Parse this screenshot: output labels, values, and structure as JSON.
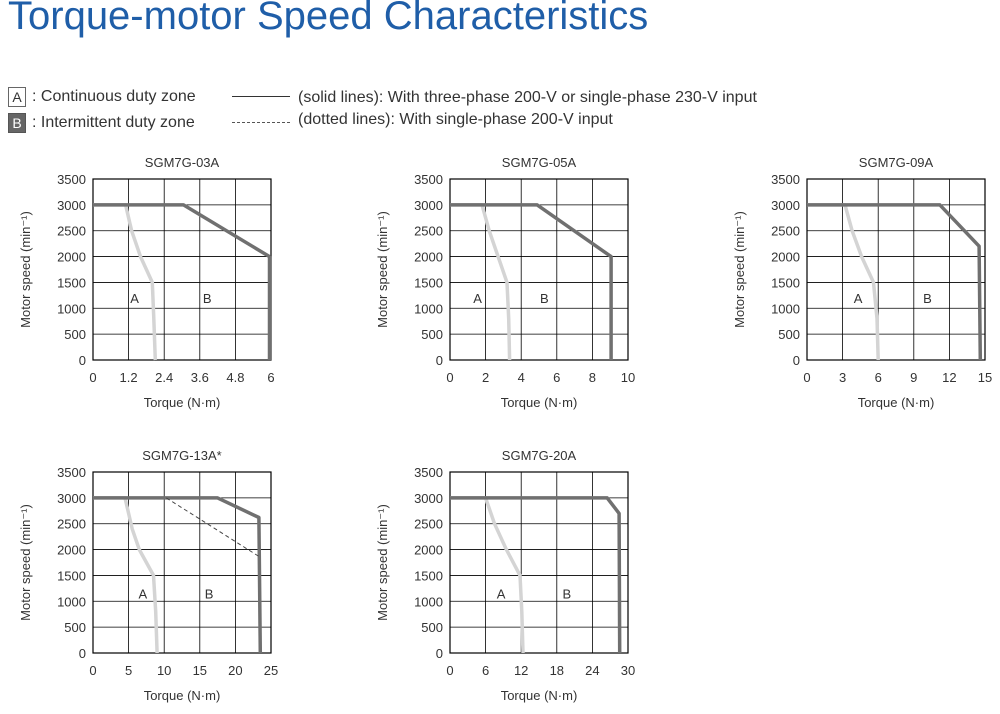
{
  "title": "Torque-motor Speed Characteristics",
  "legend": {
    "zone_a_letter": "A",
    "zone_a_text": ": Continuous duty zone",
    "zone_b_letter": "B",
    "zone_b_text": ": Intermittent duty zone",
    "solid_text": "(solid lines): With three-phase 200-V or single-phase 230-V input",
    "dotted_text": "(dotted lines): With single-phase 200-V input"
  },
  "colors": {
    "title": "#1f5ea8",
    "continuous_curve": "#d4d4d4",
    "intermittent_curve": "#707070",
    "dotted_curve": "#444444",
    "grid": "#000000"
  },
  "chart_data": [
    {
      "type": "line",
      "title": "SGM7G-03A",
      "xlabel": "Torque (N·m)",
      "ylabel": "Motor speed (min⁻¹)",
      "xlim": [
        0,
        6
      ],
      "ylim": [
        0,
        3500
      ],
      "xticks": [
        0,
        1.2,
        2.4,
        3.6,
        4.8,
        6
      ],
      "xtick_labels": [
        "0",
        "1.2",
        "2.4",
        "3.6",
        "4.8",
        "6"
      ],
      "yticks": [
        0,
        500,
        1000,
        1500,
        2000,
        2500,
        3000,
        3500
      ],
      "grid": true,
      "zone_labels": [
        {
          "text": "A",
          "x": 1.4,
          "y": 1200
        },
        {
          "text": "B",
          "x": 3.85,
          "y": 1200
        }
      ],
      "series": [
        {
          "role": "continuous",
          "x": [
            0,
            1.1,
            1.3,
            1.6,
            2.0,
            2.05,
            2.1
          ],
          "y": [
            3000,
            3000,
            2500,
            2000,
            1500,
            800,
            0
          ]
        },
        {
          "role": "intermittent-solid",
          "x": [
            0,
            3.05,
            5.95,
            5.95
          ],
          "y": [
            3000,
            3000,
            2000,
            0
          ]
        }
      ]
    },
    {
      "type": "line",
      "title": "SGM7G-05A",
      "xlabel": "Torque (N·m)",
      "ylabel": "Motor speed (min⁻¹)",
      "xlim": [
        0,
        10
      ],
      "ylim": [
        0,
        3500
      ],
      "xticks": [
        0,
        2,
        4,
        6,
        8,
        10
      ],
      "xtick_labels": [
        "0",
        "2",
        "4",
        "6",
        "8",
        "10"
      ],
      "yticks": [
        0,
        500,
        1000,
        1500,
        2000,
        2500,
        3000,
        3500
      ],
      "grid": true,
      "zone_labels": [
        {
          "text": "A",
          "x": 1.55,
          "y": 1200
        },
        {
          "text": "B",
          "x": 5.3,
          "y": 1200
        }
      ],
      "series": [
        {
          "role": "continuous",
          "x": [
            0,
            1.8,
            2.2,
            2.7,
            3.2,
            3.3,
            3.35
          ],
          "y": [
            3000,
            3000,
            2500,
            2000,
            1500,
            800,
            0
          ]
        },
        {
          "role": "intermittent-solid",
          "x": [
            0,
            4.9,
            9.05,
            9.05
          ],
          "y": [
            3000,
            3000,
            2000,
            0
          ]
        }
      ]
    },
    {
      "type": "line",
      "title": "SGM7G-09A",
      "xlabel": "Torque (N·m)",
      "ylabel": "Motor speed (min⁻¹)",
      "xlim": [
        0,
        15
      ],
      "ylim": [
        0,
        3500
      ],
      "xticks": [
        0,
        3,
        6,
        9,
        12,
        15
      ],
      "xtick_labels": [
        "0",
        "3",
        "6",
        "9",
        "12",
        "15"
      ],
      "yticks": [
        0,
        500,
        1000,
        1500,
        2000,
        2500,
        3000,
        3500
      ],
      "grid": true,
      "zone_labels": [
        {
          "text": "A",
          "x": 4.3,
          "y": 1200
        },
        {
          "text": "B",
          "x": 10.15,
          "y": 1200
        }
      ],
      "series": [
        {
          "role": "continuous",
          "x": [
            0,
            3.2,
            3.8,
            4.6,
            5.6,
            5.9,
            6.0
          ],
          "y": [
            3000,
            3000,
            2500,
            2000,
            1500,
            800,
            0
          ]
        },
        {
          "role": "intermittent-solid",
          "x": [
            0,
            11.2,
            14.5,
            14.6
          ],
          "y": [
            3000,
            3000,
            2200,
            0
          ]
        }
      ]
    },
    {
      "type": "line",
      "title": "SGM7G-13A*",
      "xlabel": "Torque (N·m)",
      "ylabel": "Motor speed (min⁻¹)",
      "xlim": [
        0,
        25
      ],
      "ylim": [
        0,
        3500
      ],
      "xticks": [
        0,
        5,
        10,
        15,
        20,
        25
      ],
      "xtick_labels": [
        "0",
        "5",
        "10",
        "15",
        "20",
        "25"
      ],
      "yticks": [
        0,
        500,
        1000,
        1500,
        2000,
        2500,
        3000,
        3500
      ],
      "grid": true,
      "zone_labels": [
        {
          "text": "A",
          "x": 7.0,
          "y": 1150
        },
        {
          "text": "B",
          "x": 16.3,
          "y": 1150
        }
      ],
      "series": [
        {
          "role": "continuous",
          "x": [
            0,
            4.5,
            5.5,
            6.5,
            8.5,
            8.8,
            9.0
          ],
          "y": [
            3000,
            3000,
            2400,
            2000,
            1500,
            800,
            0
          ]
        },
        {
          "role": "intermittent-solid",
          "x": [
            0,
            17.5,
            23.3,
            23.5
          ],
          "y": [
            3000,
            3000,
            2620,
            0
          ]
        },
        {
          "role": "intermittent-dotted",
          "x": [
            10.3,
            23.5
          ],
          "y": [
            3000,
            1850
          ]
        }
      ]
    },
    {
      "type": "line",
      "title": "SGM7G-20A",
      "xlabel": "Torque (N·m)",
      "ylabel": "Motor speed (min⁻¹)",
      "xlim": [
        0,
        30
      ],
      "ylim": [
        0,
        3500
      ],
      "xticks": [
        0,
        6,
        12,
        18,
        24,
        30
      ],
      "xtick_labels": [
        "0",
        "6",
        "12",
        "18",
        "24",
        "30"
      ],
      "yticks": [
        0,
        500,
        1000,
        1500,
        2000,
        2500,
        3000,
        3500
      ],
      "grid": true,
      "zone_labels": [
        {
          "text": "A",
          "x": 8.6,
          "y": 1150
        },
        {
          "text": "B",
          "x": 19.7,
          "y": 1150
        }
      ],
      "series": [
        {
          "role": "continuous",
          "x": [
            0,
            6.0,
            7.5,
            9.5,
            11.8,
            12.1,
            12.3
          ],
          "y": [
            3000,
            3000,
            2500,
            2000,
            1500,
            800,
            0
          ]
        },
        {
          "role": "intermittent-solid",
          "x": [
            0,
            26.5,
            28.5,
            28.6
          ],
          "y": [
            3000,
            3000,
            2700,
            0
          ]
        }
      ]
    }
  ]
}
